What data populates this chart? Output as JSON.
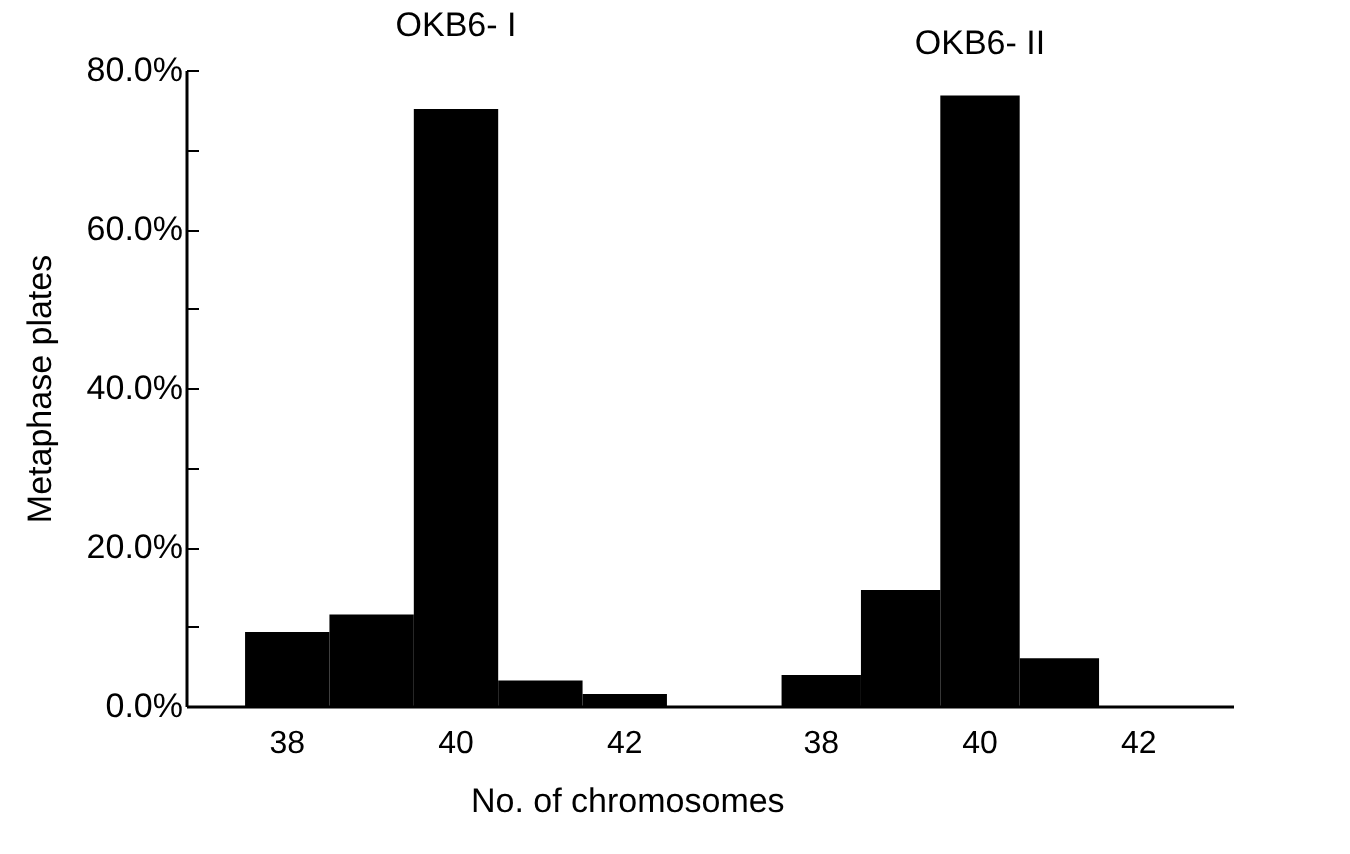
{
  "chart_data": [
    {
      "type": "bar",
      "title": "OKB6- I",
      "xlabel": "No. of chromosomes",
      "ylabel": "Metaphase plates",
      "categories": [
        "38",
        null,
        "40",
        null,
        "42"
      ],
      "values": [
        9.3,
        11.5,
        75.1,
        3.2,
        1.5
      ],
      "color": "#000000",
      "ylim": [
        0,
        80
      ],
      "yticks": [
        {
          "value": 0,
          "label": "0.0%"
        },
        {
          "value": 10,
          "label": null
        },
        {
          "value": 20,
          "label": "20.0%"
        },
        {
          "value": 30,
          "label": null
        },
        {
          "value": 40,
          "label": "40.0%"
        },
        {
          "value": 50,
          "label": null
        },
        {
          "value": 60,
          "label": "60.0%"
        },
        {
          "value": 70,
          "label": null
        },
        {
          "value": 80,
          "label": "80.0%"
        }
      ]
    },
    {
      "type": "bar",
      "title": "OKB6- II",
      "categories": [
        "38",
        null,
        "40",
        null,
        "42"
      ],
      "values": [
        3.9,
        14.6,
        76.8,
        6.0,
        0
      ],
      "color": "#000000",
      "ylim": [
        0,
        80
      ],
      "tick_labels": "x"
    }
  ]
}
